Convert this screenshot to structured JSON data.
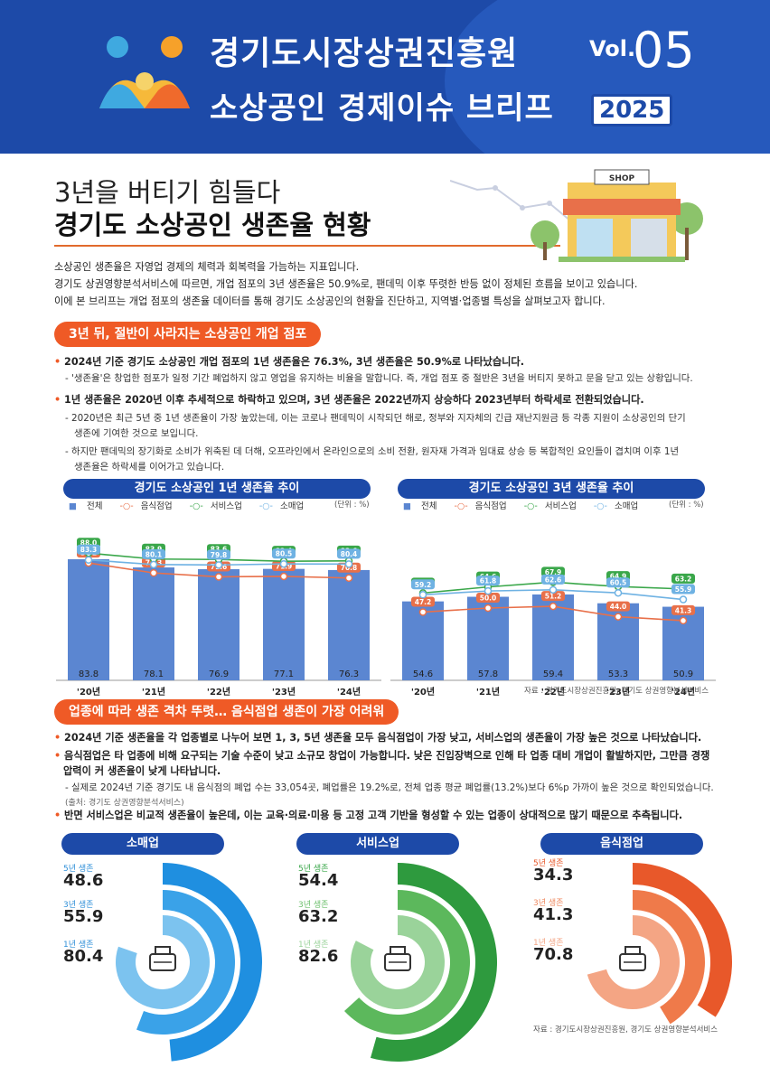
{
  "header": {
    "org": "경기도시장상권진흥원",
    "series": "소상공인 경제이슈 브리프",
    "vol_label": "Vol.",
    "vol_no": "05",
    "year": "2025"
  },
  "title": {
    "line1": "3년을 버티기 힘들다",
    "line2": "경기도 소상공인 생존율 현황",
    "shop_sign": "SHOP"
  },
  "intro": [
    "소상공인 생존율은 자영업 경제의 체력과 회복력을 가늠하는 지표입니다.",
    "경기도 상권영향분석서비스에 따르면, 개업 점포의 3년 생존율은 50.9%로, 팬데믹 이후 뚜렷한 반등 없이 정체된 흐름을 보이고 있습니다.",
    "이에 본 브리프는 개업 점포의 생존율 데이터를 통해 경기도 소상공인의 현황을 진단하고, 지역별·업종별 특성을 살펴보고자 합니다."
  ],
  "section1": {
    "heading": "3년 뒤, 절반이 사라지는 소상공인 개업 점포",
    "p1": "2024년 기준 경기도 소상공인 개업 점포의 1년 생존율은 76.3%, 3년 생존율은 50.9%로 나타났습니다.",
    "p1_sub": "- '생존율'은 창업한 점포가 일정 기간 폐업하지 않고 영업을 유지하는 비율을 말합니다. 즉, 개업 점포 중 절반은 3년을 버티지 못하고 문을 닫고 있는 상황입니다.",
    "p2": "1년 생존율은 2020년 이후 추세적으로 하락하고 있으며, 3년 생존율은 2022년까지 상승하다 2023년부터 하락세로 전환되었습니다.",
    "p2_sub1a": "- 2020년은 최근 5년 중 1년 생존율이 가장 높았는데, 이는 코로나 팬데믹이 시작되던 해로, 정부와 지자체의 긴급 재난지원금 등 각종 지원이 소상공인의 단기",
    "p2_sub1b": "생존에 기여한 것으로 보입니다.",
    "p2_sub2a": "- 하지만 팬데믹의 장기화로 소비가 위축된 데 더해, 오프라인에서 온라인으로의 소비 전환, 원자재 가격과 임대료 상승 등 복합적인 요인들이 겹치며 이후 1년",
    "p2_sub2b": "생존율은 하락세를 이어가고 있습니다."
  },
  "legend": {
    "total": "전체",
    "food": "음식점업",
    "service": "서비스업",
    "retail": "소매업",
    "unit": "(단위 : %)"
  },
  "colors": {
    "total": "#5b86d1",
    "food": "#e8704a",
    "service": "#3aa74a",
    "retail": "#6fb2e3"
  },
  "chart_data": [
    {
      "type": "bar",
      "title": "경기도 소상공인 1년 생존율 추이",
      "categories": [
        "'20년",
        "'21년",
        "'22년",
        "'23년",
        "'24년"
      ],
      "ylim": [
        0,
        100
      ],
      "series": [
        {
          "name": "전체",
          "type": "bar",
          "values": [
            83.8,
            78.1,
            76.9,
            77.1,
            76.3
          ]
        },
        {
          "name": "음식점업",
          "type": "line",
          "values": [
            81.2,
            74.3,
            71.6,
            71.9,
            70.8
          ]
        },
        {
          "name": "서비스업",
          "type": "line",
          "values": [
            88.0,
            83.9,
            83.6,
            82.4,
            82.6
          ]
        },
        {
          "name": "소매업",
          "type": "line",
          "values": [
            83.3,
            80.1,
            79.8,
            80.5,
            80.4
          ]
        }
      ]
    },
    {
      "type": "bar",
      "title": "경기도 소상공인 3년 생존율 추이",
      "categories": [
        "'20년",
        "'21년",
        "'22년",
        "'23년",
        "'24년"
      ],
      "ylim": [
        0,
        100
      ],
      "series": [
        {
          "name": "전체",
          "type": "bar",
          "values": [
            54.6,
            57.8,
            59.4,
            53.3,
            50.9
          ]
        },
        {
          "name": "음식점업",
          "type": "line",
          "values": [
            47.2,
            50.0,
            51.2,
            44.0,
            41.3
          ]
        },
        {
          "name": "서비스업",
          "type": "line",
          "values": [
            60.4,
            64.6,
            67.9,
            64.9,
            63.2
          ]
        },
        {
          "name": "소매업",
          "type": "line",
          "values": [
            59.2,
            61.8,
            62.6,
            60.5,
            55.9
          ]
        }
      ]
    },
    {
      "type": "pie",
      "title": "소매업",
      "labels": [
        "5년 생존",
        "3년 생존",
        "1년 생존"
      ],
      "values": [
        48.6,
        55.9,
        80.4
      ]
    },
    {
      "type": "pie",
      "title": "서비스업",
      "labels": [
        "5년 생존",
        "3년 생존",
        "1년 생존"
      ],
      "values": [
        54.4,
        63.2,
        82.6
      ]
    },
    {
      "type": "pie",
      "title": "음식점업",
      "labels": [
        "5년 생존",
        "3년 생존",
        "1년 생존"
      ],
      "values": [
        34.3,
        41.3,
        70.8
      ]
    }
  ],
  "source1": "자료 : 경기도시장상권진흥원, 경기도 상권영향분석서비스",
  "section2": {
    "heading": "업종에 따라 생존 격차 뚜렷… 음식점업 생존이 가장 어려워",
    "p1": "2024년 기준 생존율을 각 업종별로 나누어 보면 1, 3, 5년 생존율 모두 음식점업이 가장 낮고, 서비스업의 생존율이 가장 높은 것으로 나타났습니다.",
    "p2a": "음식점업은 타 업종에 비해 요구되는 기술 수준이 낮고 소규모 창업이 가능합니다. 낮은 진입장벽으로 인해 타 업종 대비 개업이 활발하지만, 그만큼 경쟁",
    "p2b": "압력이 커 생존율이 낮게 나타납니다.",
    "p2_sub": "- 실제로 2024년 기준 경기도 내 음식점의 폐업 수는 33,054곳, 폐업률은 19.2%로, 전체 업종 평균 폐업률(13.2%)보다 6%p 가까이 높은 것으로 확인되었습니다.",
    "p2_src": "(출처: 경기도 상권영향분석서비스)",
    "p3": "반면 서비스업은 비교적 생존율이 높은데, 이는 교육·의료·미용 등 고정 고객 기반을 형성할 수 있는 업종이 상대적으로 많기 때문으로 추측됩니다."
  },
  "source2": "자료 : 경기도시장상권진흥원, 경기도 상권영향분석서비스"
}
